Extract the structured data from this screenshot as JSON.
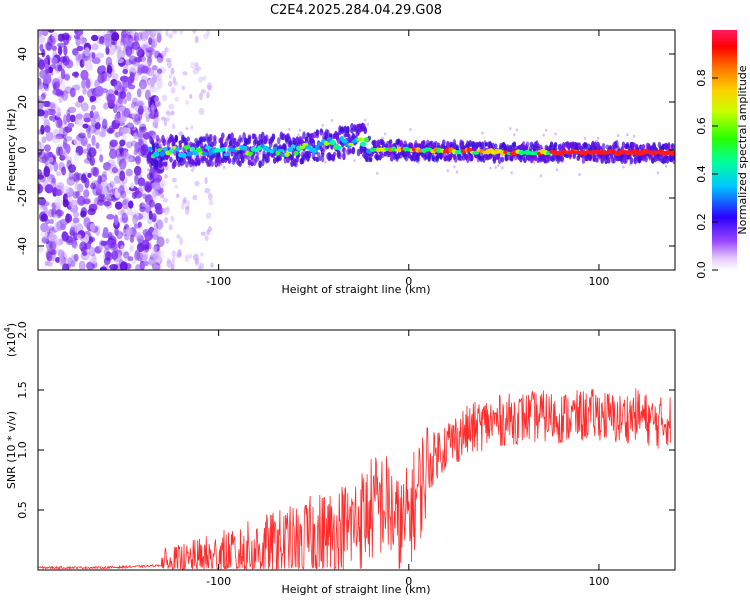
{
  "title": "C2E4.2025.284.04.29.G08",
  "top_panel": {
    "xlabel": "Height of straight line (km)",
    "ylabel": "Frequency (Hz)",
    "xlim": [
      -195,
      140
    ],
    "ylim": [
      -50,
      50
    ],
    "xticks": [
      -100,
      0,
      100
    ],
    "yticks": [
      -40,
      -20,
      0,
      20,
      40
    ],
    "colorbar": {
      "label": "Normalized spectral amplitude",
      "ticks": [
        "0.0",
        "0.2",
        "0.4",
        "0.6",
        "0.8"
      ],
      "range": [
        0,
        1
      ]
    }
  },
  "bottom_panel": {
    "xlabel": "Height of straight line (km)",
    "ylabel": "SNR (10 * v/v)",
    "scale_label": "(x10",
    "scale_exp": "4",
    "scale_close": ")",
    "xlim": [
      -195,
      140
    ],
    "ylim": [
      0,
      2.0
    ],
    "xticks": [
      -100,
      0,
      100
    ],
    "yticks": [
      "0.5",
      "1.0",
      "1.5",
      "2.0"
    ]
  },
  "chart_data": [
    {
      "type": "heatmap",
      "title": "C2E4.2025.284.04.29.G08",
      "xlabel": "Height of straight line (km)",
      "ylabel": "Frequency (Hz)",
      "xlim": [
        -195,
        140
      ],
      "ylim": [
        -50,
        50
      ],
      "zlabel": "Normalized spectral amplitude",
      "zlim": [
        0,
        1
      ],
      "description_points": {
        "noise_region_x": [
          -195,
          -135
        ],
        "line_x": [
          -137,
          140
        ],
        "line_freq": [
          [
            -135,
            -1
          ],
          [
            -100,
            0
          ],
          [
            -60,
            0
          ],
          [
            -35,
            3
          ],
          [
            -25,
            5
          ],
          [
            -20,
            0
          ],
          [
            0,
            0
          ],
          [
            50,
            -1
          ],
          [
            80,
            -1
          ],
          [
            140,
            -1
          ]
        ],
        "peak_amplitude_x": [
          75,
          140
        ]
      }
    },
    {
      "type": "line",
      "xlabel": "Height of straight line (km)",
      "ylabel": "SNR (10 * v/v) x10^4",
      "xlim": [
        -195,
        140
      ],
      "ylim": [
        0,
        2.0
      ],
      "series": [
        {
          "name": "SNR",
          "color": "#ff1a1a",
          "x": [
            -195,
            -160,
            -140,
            -120,
            -110,
            -100,
            -90,
            -80,
            -70,
            -60,
            -50,
            -40,
            -30,
            -25,
            -20,
            -15,
            -10,
            -5,
            0,
            5,
            10,
            15,
            20,
            30,
            40,
            50,
            60,
            70,
            80,
            90,
            100,
            110,
            120,
            130,
            138
          ],
          "y": [
            0.02,
            0.02,
            0.03,
            0.05,
            0.08,
            0.1,
            0.13,
            0.16,
            0.19,
            0.22,
            0.27,
            0.3,
            0.36,
            0.42,
            0.5,
            0.55,
            0.52,
            0.3,
            0.45,
            0.65,
            0.85,
            0.98,
            1.05,
            1.15,
            1.22,
            1.25,
            1.27,
            1.28,
            1.27,
            1.28,
            1.3,
            1.25,
            1.3,
            1.22,
            1.25
          ]
        }
      ]
    }
  ],
  "colors": {
    "line": "#ff2a2a",
    "noise": "#6a12e6"
  }
}
